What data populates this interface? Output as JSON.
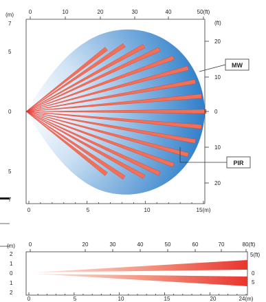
{
  "colors": {
    "mw_dark": "#2f7fc9",
    "mw_light": "#ffffff",
    "pir_beam": "#ee7158",
    "pir_beam_dark": "#e8352e",
    "axis": "#333333"
  },
  "top_view": {
    "x_axis_top": {
      "unit": "(ft)",
      "ticks": [
        "0",
        "10",
        "20",
        "30",
        "40",
        "50(ft)"
      ]
    },
    "x_axis_bottom": {
      "ticks": [
        "0",
        "5",
        "10",
        "15(m)"
      ]
    },
    "left_axis": {
      "unit": "(m)",
      "ticks": [
        "7",
        "5",
        "0",
        "5",
        "7"
      ]
    },
    "right_axis": {
      "unit": "(ft)",
      "ticks": [
        "20",
        "10",
        "0",
        "10",
        "20"
      ]
    },
    "labels": {
      "mw": "MW",
      "pir": "PIR"
    }
  },
  "side_view": {
    "x_axis_top": {
      "ticks": [
        "0",
        "20",
        "30",
        "40",
        "50",
        "60",
        "70",
        "80(ft)"
      ]
    },
    "x_axis_bottom": {
      "ticks": [
        "0",
        "5",
        "10",
        "15",
        "20",
        "24(m)"
      ]
    },
    "left_axis": {
      "unit": "(m)",
      "ticks": [
        "2",
        "1",
        "0",
        "1",
        "2"
      ]
    },
    "right_axis": {
      "ticks": [
        "5(ft)",
        "0",
        "5"
      ]
    }
  }
}
